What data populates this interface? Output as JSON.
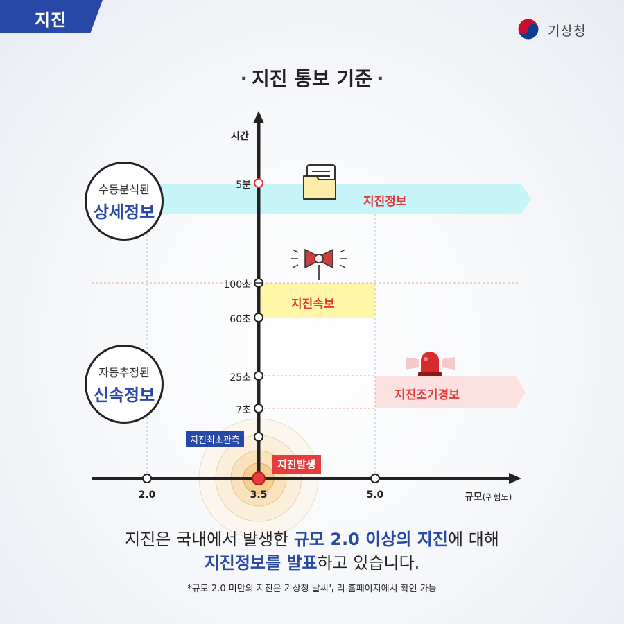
{
  "header": {
    "category": "지진",
    "agency": "기상청"
  },
  "title": "지진 통보 기준",
  "diagram": {
    "y_axis_label": "시간",
    "x_axis_label": "규모",
    "x_axis_unit": "(위험도)",
    "x_ticks": [
      {
        "label": "2.0",
        "value": 2.0
      },
      {
        "label": "3.5",
        "value": 3.5
      },
      {
        "label": "5.0",
        "value": 5.0
      }
    ],
    "y_ticks": [
      "5분",
      "100초",
      "60초",
      "25초",
      "7초"
    ],
    "groups": [
      {
        "line1": "수동분석된",
        "line2": "상세정보"
      },
      {
        "line1": "자동추정된",
        "line2": "신속정보"
      }
    ],
    "bands": {
      "info": "지진정보",
      "quick": "지진속보",
      "early": "지진조기경보"
    },
    "events": {
      "first_detection": "지진최초관측",
      "occurrence": "지진발생"
    },
    "colors": {
      "axis": "#222222",
      "info_band": "#c7f4f9",
      "quick_band": "#fff6a8",
      "early_band": "#fde0e0",
      "accent_red": "#e5393b",
      "accent_blue": "#2848a8"
    }
  },
  "description": {
    "line1_pre": "지진은 국내에서 발생한 ",
    "line1_bold": "규모 2.0 이상의 지진",
    "line1_post": "에 대해",
    "line2_bold": "지진정보를 발표",
    "line2_post": "하고 있습니다."
  },
  "footnote": "*규모 2.0 미만의 지진은 기상청 날씨누리 홈페이지에서 확인 가능"
}
